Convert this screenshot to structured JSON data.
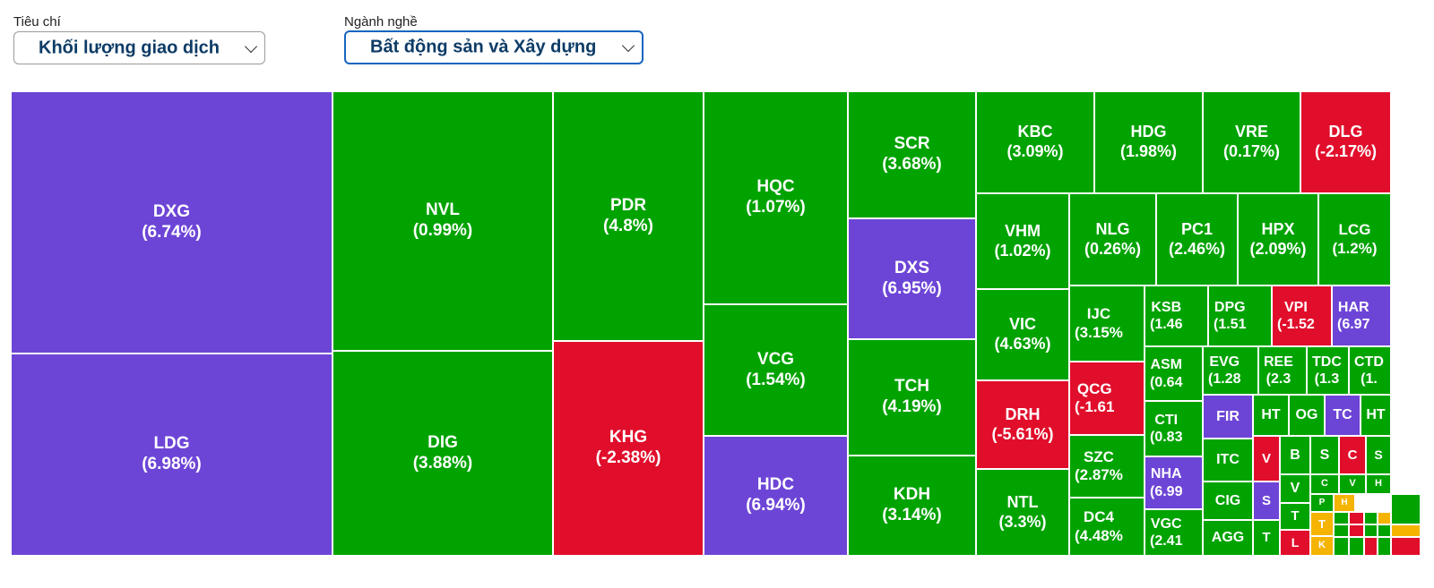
{
  "filters": {
    "criteria_label": "Tiêu chí",
    "criteria_value": "Khối lượng giao dịch",
    "sector_label": "Ngành nghề",
    "sector_value": "Bất động sản và Xây dựng"
  },
  "colors": {
    "up": "#00a300",
    "down": "#e10e2b",
    "ceiling": "#6d45d6",
    "reference": "#f5b400"
  },
  "treemap": {
    "tiles": [
      {
        "t": "DXG",
        "v": "6.74%",
        "s": "ceiling"
      },
      {
        "t": "LDG",
        "v": "6.98%",
        "s": "ceiling"
      },
      {
        "t": "NVL",
        "v": "0.99%",
        "s": "up"
      },
      {
        "t": "DIG",
        "v": "3.88%",
        "s": "up"
      },
      {
        "t": "PDR",
        "v": "4.8%",
        "s": "up"
      },
      {
        "t": "KHG",
        "v": "-2.38%",
        "s": "down"
      },
      {
        "t": "HQC",
        "v": "1.07%",
        "s": "up"
      },
      {
        "t": "VCG",
        "v": "1.54%",
        "s": "up"
      },
      {
        "t": "HDC",
        "v": "6.94%",
        "s": "ceiling"
      },
      {
        "t": "SCR",
        "v": "3.68%",
        "s": "up"
      },
      {
        "t": "DXS",
        "v": "6.95%",
        "s": "ceiling"
      },
      {
        "t": "TCH",
        "v": "4.19%",
        "s": "up"
      },
      {
        "t": "KDH",
        "v": "3.14%",
        "s": "up"
      },
      {
        "t": "KBC",
        "v": "3.09%",
        "s": "up"
      },
      {
        "t": "HDG",
        "v": "1.98%",
        "s": "up"
      },
      {
        "t": "VRE",
        "v": "0.17%",
        "s": "up"
      },
      {
        "t": "DLG",
        "v": "-2.17%",
        "s": "down"
      },
      {
        "t": "VHM",
        "v": "1.02%",
        "s": "up"
      },
      {
        "t": "NLG",
        "v": "0.26%",
        "s": "up"
      },
      {
        "t": "PC1",
        "v": "2.46%",
        "s": "up"
      },
      {
        "t": "HPX",
        "v": "2.09%",
        "s": "up"
      },
      {
        "t": "LCG",
        "v": "1.2%",
        "s": "up"
      },
      {
        "t": "VIC",
        "v": "4.63%",
        "s": "up"
      },
      {
        "t": "IJC",
        "v": "3.15%",
        "s": "up",
        "c": true
      },
      {
        "t": "KSB",
        "v": "1.46",
        "s": "up",
        "c": true
      },
      {
        "t": "DPG",
        "v": "1.51",
        "s": "up",
        "c": true
      },
      {
        "t": "VPI",
        "v": "-1.52",
        "s": "down",
        "c": true
      },
      {
        "t": "HAR",
        "v": "6.97",
        "s": "ceiling",
        "c": true
      },
      {
        "t": "DRH",
        "v": "-5.61%",
        "s": "down"
      },
      {
        "t": "QCG",
        "v": "-1.61",
        "s": "down",
        "c": true
      },
      {
        "t": "ASM",
        "v": "0.64",
        "s": "up",
        "c": true
      },
      {
        "t": "EVG",
        "v": "1.28",
        "s": "up",
        "c": true
      },
      {
        "t": "REE",
        "v": "2.3",
        "s": "up",
        "c": true
      },
      {
        "t": "TDC",
        "v": "1.3",
        "s": "up",
        "c": true
      },
      {
        "t": "CTD",
        "v": "1.",
        "s": "up",
        "c": true
      },
      {
        "t": "NTL",
        "v": "3.3%",
        "s": "up"
      },
      {
        "t": "SZC",
        "v": "2.87%",
        "s": "up",
        "c": true
      },
      {
        "t": "CTI",
        "v": "0.83",
        "s": "up",
        "c": true
      },
      {
        "t": "FIR",
        "s": "ceiling"
      },
      {
        "t": "HT",
        "s": "up"
      },
      {
        "t": "OG",
        "s": "up"
      },
      {
        "t": "TC",
        "s": "ceiling"
      },
      {
        "t": "HT",
        "s": "up"
      },
      {
        "t": "NHA",
        "v": "6.99",
        "s": "ceiling",
        "c": true
      },
      {
        "t": "ITC",
        "s": "up"
      },
      {
        "t": "V",
        "s": "down"
      },
      {
        "t": "B",
        "s": "up"
      },
      {
        "t": "S",
        "s": "up"
      },
      {
        "t": "C",
        "s": "down"
      },
      {
        "t": "S",
        "s": "up"
      },
      {
        "t": "DC4",
        "v": "4.48%",
        "s": "up",
        "c": true
      },
      {
        "t": "VGC",
        "v": "2.41",
        "s": "up",
        "c": true
      },
      {
        "t": "CIG",
        "s": "up"
      },
      {
        "t": "S",
        "s": "ceiling"
      },
      {
        "t": "V",
        "s": "up"
      },
      {
        "t": "C",
        "s": "up"
      },
      {
        "t": "V",
        "s": "up"
      },
      {
        "t": "H",
        "s": "up"
      },
      {
        "t": "AGG",
        "s": "up"
      },
      {
        "t": "T",
        "s": "up"
      },
      {
        "t": "T",
        "s": "up"
      },
      {
        "t": "P",
        "s": "up"
      },
      {
        "t": "H",
        "s": "reference"
      },
      {
        "t": "L",
        "s": "down"
      },
      {
        "t": "T",
        "s": "reference"
      },
      {
        "t": "K",
        "s": "reference"
      },
      {
        "t": "",
        "s": "up"
      },
      {
        "t": "",
        "s": "down"
      },
      {
        "t": "",
        "s": "up"
      },
      {
        "t": "",
        "s": "reference"
      },
      {
        "t": "",
        "s": "up"
      },
      {
        "t": "",
        "s": "up"
      },
      {
        "t": "",
        "s": "down"
      },
      {
        "t": "",
        "s": "up"
      },
      {
        "t": "",
        "s": "up"
      },
      {
        "t": "",
        "s": "reference"
      },
      {
        "t": "",
        "s": "up"
      },
      {
        "t": "",
        "s": "up"
      },
      {
        "t": "",
        "s": "down"
      },
      {
        "t": "",
        "s": "up"
      },
      {
        "t": "",
        "s": "down"
      }
    ]
  }
}
